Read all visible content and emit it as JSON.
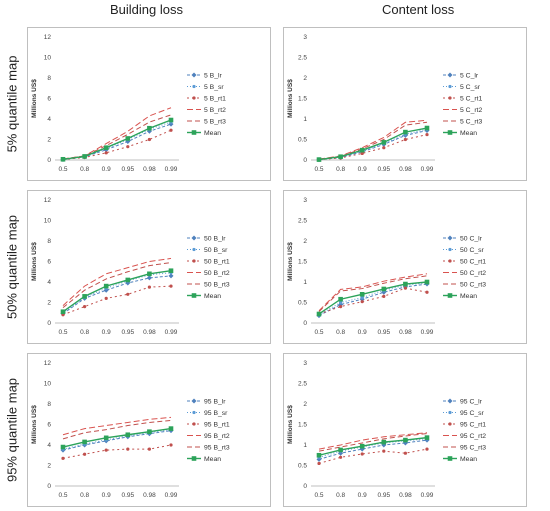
{
  "headers": {
    "building": "Building loss",
    "content": "Content loss"
  },
  "rows": [
    "5% quantile map",
    "50% quantile map",
    "95% quantile map"
  ],
  "styles": {
    "lr": {
      "color": "#4f81bd",
      "dash": "3,2",
      "marker": "diamond"
    },
    "sr": {
      "color": "#5b9bd5",
      "dash": "1,2",
      "marker": "dot"
    },
    "rt1": {
      "color": "#c0504d",
      "dash": "2,3",
      "marker": "dot"
    },
    "rt2": {
      "color": "#d9534f",
      "dash": "6,3",
      "marker": "none"
    },
    "rt3": {
      "color": "#c0504d",
      "dash": "5,3",
      "marker": "none"
    },
    "mean": {
      "color": "#2ca35a",
      "dash": "",
      "marker": "square"
    }
  },
  "chart_data": [
    {
      "type": "line",
      "ylabel": "Millions US$",
      "ylim": [
        0,
        12
      ],
      "yticks": [
        0,
        2,
        4,
        6,
        8,
        10,
        12
      ],
      "categories": [
        "0.5",
        "0.8",
        "0.9",
        "0.95",
        "0.98",
        "0.99"
      ],
      "series": [
        {
          "name": "5 B_lr",
          "key": "lr",
          "values": [
            0.05,
            0.3,
            1.0,
            1.8,
            2.8,
            3.5
          ]
        },
        {
          "name": "5 B_sr",
          "key": "sr",
          "values": [
            0.05,
            0.3,
            1.1,
            2.0,
            3.0,
            3.7
          ]
        },
        {
          "name": "5 B_rt1",
          "key": "rt1",
          "values": [
            0.05,
            0.25,
            0.7,
            1.3,
            2.0,
            2.9
          ]
        },
        {
          "name": "5 B_rt2",
          "key": "rt2",
          "values": [
            0.1,
            0.4,
            1.6,
            2.8,
            4.3,
            5.1
          ]
        },
        {
          "name": "5 B_rt3",
          "key": "rt3",
          "values": [
            0.1,
            0.4,
            1.4,
            2.5,
            3.7,
            4.4
          ]
        },
        {
          "name": "Mean",
          "key": "mean",
          "values": [
            0.07,
            0.35,
            1.2,
            2.1,
            3.1,
            3.9
          ]
        }
      ]
    },
    {
      "type": "line",
      "ylabel": "Millions US$",
      "ylim": [
        0,
        3
      ],
      "yticks": [
        0,
        0.5,
        1,
        1.5,
        2,
        2.5,
        3
      ],
      "categories": [
        "0.5",
        "0.8",
        "0.9",
        "0.95",
        "0.98",
        "0.99"
      ],
      "series": [
        {
          "name": "5 C_lr",
          "key": "lr",
          "values": [
            0.01,
            0.06,
            0.2,
            0.38,
            0.6,
            0.72
          ]
        },
        {
          "name": "5 C_sr",
          "key": "sr",
          "values": [
            0.01,
            0.07,
            0.22,
            0.4,
            0.63,
            0.75
          ]
        },
        {
          "name": "5 C_rt1",
          "key": "rt1",
          "values": [
            0.01,
            0.05,
            0.16,
            0.3,
            0.5,
            0.62
          ]
        },
        {
          "name": "5 C_rt2",
          "key": "rt2",
          "values": [
            0.02,
            0.1,
            0.3,
            0.55,
            0.92,
            0.97
          ]
        },
        {
          "name": "5 C_rt3",
          "key": "rt3",
          "values": [
            0.02,
            0.09,
            0.27,
            0.5,
            0.85,
            0.92
          ]
        },
        {
          "name": "Mean",
          "key": "mean",
          "values": [
            0.01,
            0.08,
            0.24,
            0.43,
            0.68,
            0.78
          ]
        }
      ]
    },
    {
      "type": "line",
      "ylabel": "Millions US$",
      "ylim": [
        0,
        12
      ],
      "yticks": [
        0,
        2,
        4,
        6,
        8,
        10,
        12
      ],
      "categories": [
        "0.5",
        "0.8",
        "0.9",
        "0.95",
        "0.98",
        "0.99"
      ],
      "series": [
        {
          "name": "50 B_lr",
          "key": "lr",
          "values": [
            0.9,
            2.4,
            3.2,
            3.9,
            4.4,
            4.6
          ]
        },
        {
          "name": "50 B_sr",
          "key": "sr",
          "values": [
            1.0,
            2.5,
            3.4,
            4.1,
            4.7,
            4.9
          ]
        },
        {
          "name": "50 B_rt1",
          "key": "rt1",
          "values": [
            0.8,
            1.6,
            2.4,
            2.8,
            3.5,
            3.6
          ]
        },
        {
          "name": "50 B_rt2",
          "key": "rt2",
          "values": [
            1.7,
            3.6,
            4.8,
            5.4,
            6.0,
            6.3
          ]
        },
        {
          "name": "50 B_rt3",
          "key": "rt3",
          "values": [
            1.5,
            3.2,
            4.3,
            5.0,
            5.6,
            5.9
          ]
        },
        {
          "name": "Mean",
          "key": "mean",
          "values": [
            1.1,
            2.6,
            3.6,
            4.2,
            4.8,
            5.1
          ]
        }
      ]
    },
    {
      "type": "line",
      "ylabel": "Millions US$",
      "ylim": [
        0,
        3
      ],
      "yticks": [
        0,
        0.5,
        1,
        1.5,
        2,
        2.5,
        3
      ],
      "categories": [
        "0.5",
        "0.8",
        "0.9",
        "0.95",
        "0.98",
        "0.99"
      ],
      "series": [
        {
          "name": "50 C_lr",
          "key": "lr",
          "values": [
            0.18,
            0.45,
            0.58,
            0.75,
            0.88,
            0.95
          ]
        },
        {
          "name": "50 C_sr",
          "key": "sr",
          "values": [
            0.2,
            0.5,
            0.62,
            0.8,
            0.92,
            0.98
          ]
        },
        {
          "name": "50 C_rt1",
          "key": "rt1",
          "values": [
            0.22,
            0.4,
            0.52,
            0.65,
            0.85,
            0.75
          ]
        },
        {
          "name": "50 C_rt2",
          "key": "rt2",
          "values": [
            0.3,
            0.82,
            0.88,
            1.02,
            1.12,
            1.2
          ]
        },
        {
          "name": "50 C_rt3",
          "key": "rt3",
          "values": [
            0.28,
            0.78,
            0.84,
            0.97,
            1.08,
            1.15
          ]
        },
        {
          "name": "Mean",
          "key": "mean",
          "values": [
            0.22,
            0.58,
            0.7,
            0.83,
            0.95,
            1.0
          ]
        }
      ]
    },
    {
      "type": "line",
      "ylabel": "Millions US$",
      "ylim": [
        0,
        12
      ],
      "yticks": [
        0,
        2,
        4,
        6,
        8,
        10,
        12
      ],
      "categories": [
        "0.5",
        "0.8",
        "0.9",
        "0.95",
        "0.98",
        "0.99"
      ],
      "series": [
        {
          "name": "95 B_lr",
          "key": "lr",
          "values": [
            3.5,
            4.0,
            4.4,
            4.8,
            5.1,
            5.4
          ]
        },
        {
          "name": "95 B_sr",
          "key": "sr",
          "values": [
            3.6,
            4.1,
            4.5,
            4.9,
            5.2,
            5.5
          ]
        },
        {
          "name": "95 B_rt1",
          "key": "rt1",
          "values": [
            2.7,
            3.1,
            3.5,
            3.6,
            3.6,
            4.0
          ]
        },
        {
          "name": "95 B_rt2",
          "key": "rt2",
          "values": [
            5.0,
            5.6,
            5.9,
            6.2,
            6.5,
            6.7
          ]
        },
        {
          "name": "95 B_rt3",
          "key": "rt3",
          "values": [
            4.6,
            5.2,
            5.5,
            5.9,
            6.2,
            6.4
          ]
        },
        {
          "name": "Mean",
          "key": "mean",
          "values": [
            3.8,
            4.3,
            4.7,
            5.0,
            5.3,
            5.6
          ]
        }
      ]
    },
    {
      "type": "line",
      "ylabel": "Millions US$",
      "ylim": [
        0,
        3
      ],
      "yticks": [
        0,
        0.5,
        1,
        1.5,
        2,
        2.5,
        3
      ],
      "categories": [
        "0.5",
        "0.8",
        "0.9",
        "0.95",
        "0.98",
        "0.99"
      ],
      "series": [
        {
          "name": "95 C_lr",
          "key": "lr",
          "values": [
            0.65,
            0.8,
            0.9,
            1.0,
            1.05,
            1.12
          ]
        },
        {
          "name": "95 C_sr",
          "key": "sr",
          "values": [
            0.7,
            0.85,
            0.95,
            1.05,
            1.1,
            1.15
          ]
        },
        {
          "name": "95 C_rt1",
          "key": "rt1",
          "values": [
            0.55,
            0.7,
            0.78,
            0.85,
            0.8,
            0.9
          ]
        },
        {
          "name": "95 C_rt2",
          "key": "rt2",
          "values": [
            0.9,
            1.0,
            1.12,
            1.2,
            1.25,
            1.3
          ]
        },
        {
          "name": "95 C_rt3",
          "key": "rt3",
          "values": [
            0.85,
            0.95,
            1.05,
            1.15,
            1.22,
            1.28
          ]
        },
        {
          "name": "Mean",
          "key": "mean",
          "values": [
            0.75,
            0.88,
            0.97,
            1.07,
            1.12,
            1.18
          ]
        }
      ]
    }
  ]
}
